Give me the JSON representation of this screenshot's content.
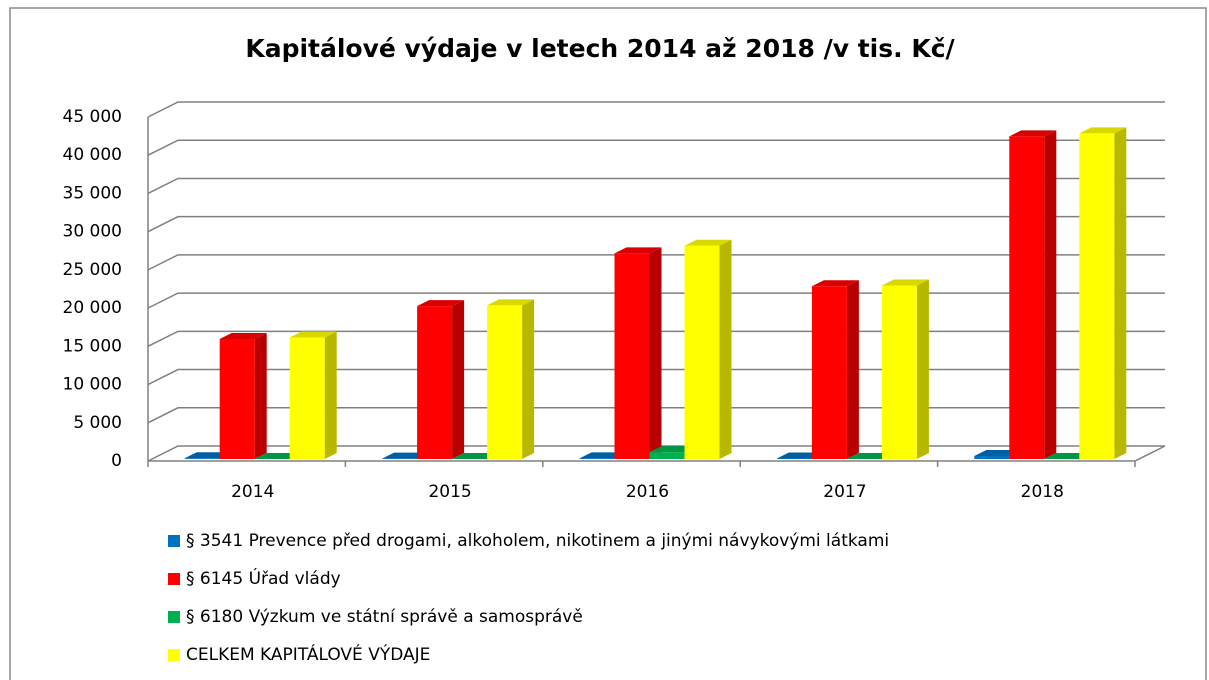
{
  "chart_data": {
    "type": "bar3d",
    "title": "Kapitálové výdaje v letech 2014 až 2018 /v tis. Kč/",
    "categories": [
      "2014",
      "2015",
      "2016",
      "2017",
      "2018"
    ],
    "series": [
      {
        "name": "§ 3541 Prevence před drogami, alkoholem, nikotinem a jinými návykovými látkami",
        "color": "#0070c0",
        "values": [
          100,
          50,
          80,
          60,
          400
        ]
      },
      {
        "name": "§ 6145 Úřad vlády",
        "color": "#ff0000",
        "values": [
          15700,
          20000,
          26900,
          22600,
          42200
        ]
      },
      {
        "name": "§ 6180 Výzkum ve státní správě a samosprávě",
        "color": "#00b050",
        "values": [
          0,
          0,
          900,
          0,
          0
        ]
      },
      {
        "name": "CELKEM KAPITÁLOVÉ VÝDAJE",
        "color": "#ffff00",
        "values": [
          15900,
          20100,
          27900,
          22700,
          42600
        ]
      }
    ],
    "ylim": [
      0,
      45000
    ],
    "yticks": [
      0,
      {
        "value": 5000,
        "label": "5 000"
      },
      {
        "value": 10000,
        "label": "10 000"
      },
      {
        "value": 15000,
        "label": "15 000"
      },
      {
        "value": 20000,
        "label": "20 000"
      },
      {
        "value": 25000,
        "label": "25 000"
      },
      {
        "value": 30000,
        "label": "30 000"
      },
      {
        "value": 35000,
        "label": "35 000"
      },
      {
        "value": 40000,
        "label": "40 000"
      },
      {
        "value": 45000,
        "label": "45 000"
      }
    ],
    "grid": true
  }
}
